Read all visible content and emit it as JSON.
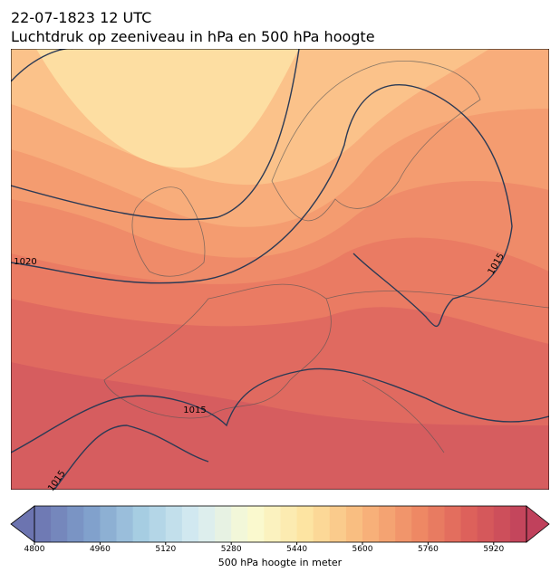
{
  "header": {
    "date": "22-07-1823 12 UTC",
    "title": "Luchtdruk op zeeniveau in hPa en 500 hPa hoogte"
  },
  "isobar_labels": [
    1020,
    1015,
    1015,
    1015
  ],
  "colorbar": {
    "label": "500 hPa hoogte in meter",
    "lim": [
      4800,
      6000
    ],
    "step": 40,
    "ticks": [
      4800,
      4960,
      5120,
      5280,
      5440,
      5600,
      5760,
      5920
    ],
    "colormap": [
      "#6c74b0",
      "#7f9fcb",
      "#a8cfe3",
      "#d8ecf2",
      "#fafad0",
      "#fde3a0",
      "#f8b77c",
      "#ef8a65",
      "#dc5f5a",
      "#c0415c"
    ]
  }
}
